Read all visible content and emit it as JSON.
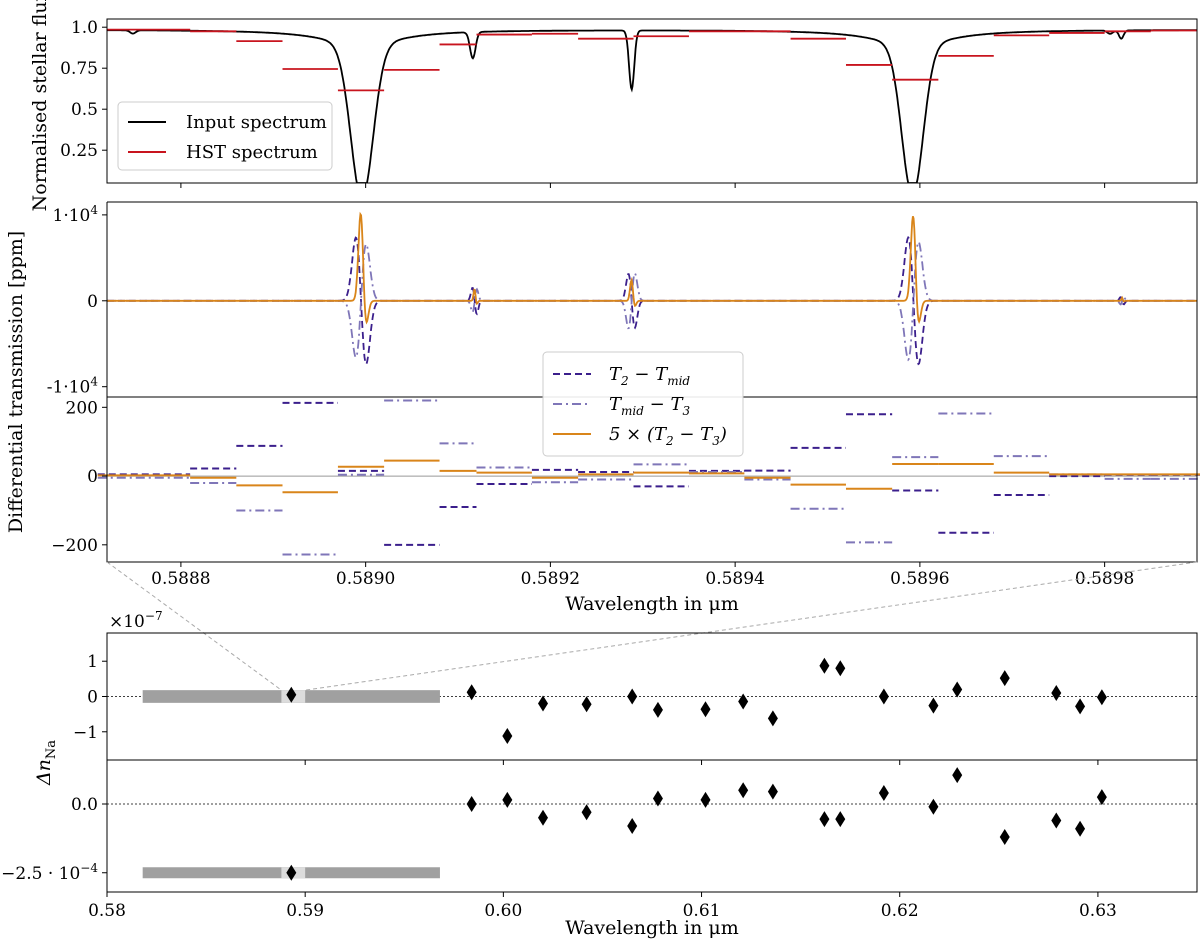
{
  "chart_data": [
    {
      "id": "flux",
      "type": "line",
      "ylabel": "Normalised stellar flux",
      "xlim": [
        0.58872,
        0.5899
      ],
      "ylim": [
        0.05,
        1.05
      ],
      "yticks": [
        {
          "v": 1.0,
          "label": "1.0"
        },
        {
          "v": 0.75,
          "label": "0.75"
        },
        {
          "v": 0.5,
          "label": "0.5"
        },
        {
          "v": 0.25,
          "label": "0.25"
        }
      ],
      "legend": {
        "position": "lower-left",
        "entries": [
          {
            "label": "Input spectrum",
            "color": "#000000",
            "dash": "solid"
          },
          {
            "label": "HST spectrum",
            "color": "#c8141e",
            "dash": "solid"
          }
        ]
      },
      "series": [
        {
          "name": "Input spectrum",
          "color": "#000000",
          "baseline": 0.985,
          "lines": [
            {
              "center": 0.588996,
              "depth": 0.93,
              "width": 1.2e-05,
              "wing": 4.8e-05,
              "wingdepth": 0.1
            },
            {
              "center": 0.589592,
              "depth": 0.91,
              "width": 1.15e-05,
              "wing": 4.8e-05,
              "wingdepth": 0.1
            },
            {
              "center": 0.589116,
              "depth": 0.16,
              "width": 3e-06
            },
            {
              "center": 0.589288,
              "depth": 0.36,
              "width": 2.8e-06
            },
            {
              "center": 0.588748,
              "depth": 0.02,
              "width": 3e-06
            },
            {
              "center": 0.589806,
              "depth": 0.02,
              "width": 3e-06
            },
            {
              "center": 0.589818,
              "depth": 0.05,
              "width": 2.5e-06
            }
          ]
        },
        {
          "name": "HST spectrum",
          "color": "#c8141e",
          "type": "step",
          "bins": [
            [
              0.58871,
              0.58881,
              0.985
            ],
            [
              0.58881,
              0.58886,
              0.975
            ],
            [
              0.58886,
              0.58891,
              0.915
            ],
            [
              0.58891,
              0.58897,
              0.745
            ],
            [
              0.58897,
              0.58902,
              0.615
            ],
            [
              0.58902,
              0.58908,
              0.74
            ],
            [
              0.58908,
              0.58912,
              0.895
            ],
            [
              0.58912,
              0.58918,
              0.955
            ],
            [
              0.58918,
              0.58923,
              0.96
            ],
            [
              0.58923,
              0.58929,
              0.93
            ],
            [
              0.58929,
              0.58935,
              0.945
            ],
            [
              0.58935,
              0.58941,
              0.975
            ],
            [
              0.58941,
              0.58946,
              0.975
            ],
            [
              0.58946,
              0.58952,
              0.93
            ],
            [
              0.58952,
              0.58957,
              0.77
            ],
            [
              0.58957,
              0.58962,
              0.68
            ],
            [
              0.58962,
              0.58968,
              0.825
            ],
            [
              0.58968,
              0.58974,
              0.95
            ],
            [
              0.58974,
              0.5898,
              0.965
            ],
            [
              0.5898,
              0.58985,
              0.975
            ],
            [
              0.58985,
              0.58991,
              0.98
            ]
          ]
        }
      ]
    },
    {
      "id": "diffhr",
      "type": "line",
      "ylabel": "Differential transmission [ppm]",
      "ylim": [
        -11200,
        11500
      ],
      "yticks": [
        {
          "v": 10000,
          "label": "1·10",
          "exp": "4"
        },
        {
          "v": 0,
          "label": "0"
        },
        {
          "v": -10000,
          "label": "-1·10",
          "exp": "4"
        }
      ],
      "series": [
        {
          "name": "T2 - Tmid",
          "color": "#3b1f8c",
          "dash": "dashed"
        },
        {
          "name": "Tmid - T3",
          "color": "#7f76b8",
          "dash": "dashdot"
        },
        {
          "name": "5 × (T2 - T3)",
          "color": "#d9851a",
          "dash": "solid"
        }
      ],
      "features": [
        {
          "center": 0.588995,
          "sigma": 4.8e-06,
          "ampA": 8700,
          "ampB": 7800,
          "ampC": 11300
        },
        {
          "center": 0.589593,
          "sigma": 4.8e-06,
          "ampA": 8700,
          "ampB": 8100,
          "ampC": 11000
        },
        {
          "center": 0.589118,
          "sigma": 2e-06,
          "ampA": 1800,
          "ampB": 1600,
          "ampC": 1500
        },
        {
          "center": 0.589288,
          "sigma": 3e-06,
          "ampA": 3700,
          "ampB": 3800,
          "ampC": 2700
        },
        {
          "center": 0.589819,
          "sigma": 1.5e-06,
          "ampA": 500,
          "ampB": 500,
          "ampC": 400
        }
      ]
    },
    {
      "id": "diffbin",
      "type": "line",
      "xlabel": "Wavelength in μm",
      "xlim": [
        0.58872,
        0.5899
      ],
      "ylim": [
        -250,
        230
      ],
      "xticks": [
        {
          "v": 0.5888,
          "label": "0.5888"
        },
        {
          "v": 0.589,
          "label": "0.5890"
        },
        {
          "v": 0.5892,
          "label": "0.5892"
        },
        {
          "v": 0.5894,
          "label": "0.5894"
        },
        {
          "v": 0.5896,
          "label": "0.5896"
        },
        {
          "v": 0.5898,
          "label": "0.5898"
        }
      ],
      "yticks": [
        {
          "v": 200,
          "label": "200"
        },
        {
          "v": 0,
          "label": "0"
        },
        {
          "v": -200,
          "label": "−200"
        }
      ],
      "legend": {
        "position": "top-center",
        "entries": [
          {
            "label": "T2 − Tmid",
            "color": "#3b1f8c",
            "dash": "dashed"
          },
          {
            "label": "Tmid − T3",
            "color": "#7f76b8",
            "dash": "dashdot"
          },
          {
            "label": "5 × (T2 − T3)",
            "color": "#d9851a",
            "dash": "solid"
          }
        ]
      },
      "bins_x": [
        [
          0.58871,
          0.58881
        ],
        [
          0.58881,
          0.58886
        ],
        [
          0.58886,
          0.58891
        ],
        [
          0.58891,
          0.58897
        ],
        [
          0.58897,
          0.58902
        ],
        [
          0.58902,
          0.58908
        ],
        [
          0.58908,
          0.58912
        ],
        [
          0.58912,
          0.58918
        ],
        [
          0.58918,
          0.58923
        ],
        [
          0.58923,
          0.58929
        ],
        [
          0.58929,
          0.58935
        ],
        [
          0.58935,
          0.58941
        ],
        [
          0.58941,
          0.58946
        ],
        [
          0.58946,
          0.58952
        ],
        [
          0.58952,
          0.58957
        ],
        [
          0.58957,
          0.58962
        ],
        [
          0.58962,
          0.58968
        ],
        [
          0.58968,
          0.58974
        ],
        [
          0.58974,
          0.5898
        ],
        [
          0.5898,
          0.58985
        ],
        [
          0.58985,
          0.58991
        ]
      ],
      "series": [
        {
          "name": "T2 − Tmid",
          "color": "#3b1f8c",
          "dash": "dashed",
          "values": [
            5,
            22,
            88,
            213,
            15,
            -200,
            -90,
            -23,
            18,
            12,
            -30,
            15,
            16,
            82,
            180,
            -42,
            -165,
            -55,
            0,
            4,
            4
          ]
        },
        {
          "name": "Tmid − T3",
          "color": "#7f76b8",
          "dash": "dashdot",
          "values": [
            -5,
            -20,
            -100,
            -228,
            4,
            220,
            95,
            25,
            -18,
            -10,
            34,
            12,
            -10,
            -95,
            -193,
            55,
            182,
            58,
            5,
            -8,
            -8
          ]
        },
        {
          "name": "5 × (T2 − T3)",
          "color": "#d9851a",
          "dash": "solid",
          "values": [
            2,
            -5,
            -27,
            -47,
            27,
            45,
            15,
            10,
            -5,
            5,
            10,
            8,
            -5,
            -25,
            -37,
            35,
            35,
            10,
            5,
            5,
            5
          ]
        }
      ]
    },
    {
      "id": "dnna_top",
      "type": "scatter",
      "ylabel": "Δn_Na",
      "offset_text": "×10−7",
      "xlim": [
        0.58,
        0.635
      ],
      "ylim": [
        -1.8,
        1.8
      ],
      "yticks": [
        {
          "v": 1,
          "label": "1"
        },
        {
          "v": 0,
          "label": "0"
        },
        {
          "v": -1,
          "label": "−1"
        }
      ],
      "band": {
        "x0": 0.5818,
        "x1": 0.5968,
        "hl0": 0.5888,
        "hl1": 0.59,
        "y0": -0.18,
        "y1": 0.18
      },
      "x": [
        0.5893,
        0.5984,
        0.6002,
        0.602,
        0.6042,
        0.6065,
        0.6078,
        0.6102,
        0.6121,
        0.6136,
        0.6162,
        0.617,
        0.6192,
        0.6217,
        0.6229,
        0.6253,
        0.6279,
        0.6291,
        0.6302
      ],
      "y": [
        0.05,
        0.12,
        -1.12,
        -0.2,
        -0.22,
        0.0,
        -0.38,
        -0.36,
        -0.14,
        -0.62,
        0.87,
        0.8,
        0.0,
        -0.26,
        0.2,
        0.52,
        0.1,
        -0.28,
        -0.02
      ]
    },
    {
      "id": "dnna_bottom",
      "type": "scatter",
      "xlabel": "Wavelength in μm",
      "xlim": [
        0.58,
        0.635
      ],
      "ylim": [
        -3.2,
        1.6
      ],
      "xticks": [
        {
          "v": 0.58,
          "label": "0.58"
        },
        {
          "v": 0.59,
          "label": "0.59"
        },
        {
          "v": 0.6,
          "label": "0.60"
        },
        {
          "v": 0.61,
          "label": "0.61"
        },
        {
          "v": 0.62,
          "label": "0.62"
        },
        {
          "v": 0.63,
          "label": "0.63"
        }
      ],
      "yticks": [
        {
          "v": 0.0,
          "label": "0.0"
        },
        {
          "v": -2.5,
          "label": "−2.5 · 10",
          "exp": "−4"
        }
      ],
      "band": {
        "x0": 0.5818,
        "x1": 0.5968,
        "hl0": 0.5888,
        "hl1": 0.59,
        "y0": -2.7,
        "y1": -2.3
      },
      "x": [
        0.5893,
        0.5984,
        0.6002,
        0.602,
        0.6042,
        0.6065,
        0.6078,
        0.6102,
        0.6121,
        0.6136,
        0.6162,
        0.617,
        0.6192,
        0.6217,
        0.6229,
        0.6253,
        0.6279,
        0.6291,
        0.6302
      ],
      "y": [
        -2.5,
        0.0,
        0.15,
        -0.5,
        -0.3,
        -0.8,
        0.2,
        0.15,
        0.5,
        0.45,
        -0.55,
        -0.55,
        0.4,
        -0.1,
        1.05,
        -1.2,
        -0.6,
        -0.9,
        0.25
      ]
    }
  ]
}
